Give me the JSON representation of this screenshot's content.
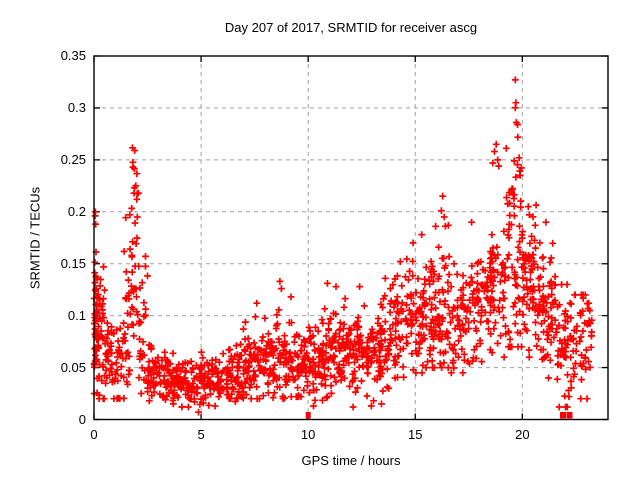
{
  "figure": {
    "background": "#ffffff",
    "border_color": "#000000",
    "text_color": "#000000"
  },
  "chart_data": {
    "type": "scatter",
    "title": "Day 207 of 2017, SRMTID for receiver ascg",
    "xlabel": "GPS time / hours",
    "ylabel": "SRMTID / TECUs",
    "xlim": [
      0,
      24
    ],
    "ylim": [
      0,
      0.35
    ],
    "xticks": {
      "values": [
        0,
        5,
        10,
        15,
        20
      ],
      "labels": [
        "0",
        "5",
        "10",
        "15",
        "20"
      ]
    },
    "yticks": {
      "values": [
        0,
        0.05,
        0.1,
        0.15,
        0.2,
        0.25,
        0.3,
        0.35
      ],
      "labels": [
        "0",
        "0.05",
        "0.1",
        "0.15",
        "0.2",
        "0.25",
        "0.3",
        "0.35"
      ]
    },
    "grid": {
      "show": true,
      "color": "#a0a0a0",
      "dash": "4 4"
    },
    "marker": {
      "shape": "plus",
      "color": "#ff0000",
      "size": 6.8,
      "stroke": 1.7
    },
    "legend": null,
    "series": [
      {
        "name": "SRMTID",
        "seed": 20717,
        "density_bins": [
          [
            0.0,
            0.15,
            45,
            0.1,
            0.045,
            0.025,
            0.2
          ],
          [
            0.15,
            0.5,
            40,
            0.08,
            0.035,
            0.02,
            0.185
          ],
          [
            0.5,
            0.9,
            30,
            0.06,
            0.022,
            0.02,
            0.13
          ],
          [
            0.9,
            1.4,
            30,
            0.055,
            0.02,
            0.02,
            0.11
          ],
          [
            1.4,
            1.75,
            28,
            0.1,
            0.05,
            0.03,
            0.21
          ],
          [
            1.75,
            2.1,
            30,
            0.16,
            0.055,
            0.04,
            0.262
          ],
          [
            2.1,
            2.5,
            26,
            0.08,
            0.035,
            0.025,
            0.16
          ],
          [
            2.5,
            3.2,
            45,
            0.048,
            0.018,
            0.018,
            0.1
          ],
          [
            3.2,
            4.0,
            60,
            0.038,
            0.012,
            0.015,
            0.075
          ],
          [
            4.0,
            5.0,
            70,
            0.036,
            0.012,
            0.012,
            0.1
          ],
          [
            5.0,
            6.0,
            70,
            0.038,
            0.013,
            0.008,
            0.08
          ],
          [
            6.0,
            7.0,
            70,
            0.045,
            0.015,
            0.015,
            0.105
          ],
          [
            7.0,
            8.0,
            70,
            0.05,
            0.017,
            0.02,
            0.112
          ],
          [
            8.0,
            9.0,
            75,
            0.055,
            0.02,
            0.02,
            0.135
          ],
          [
            9.0,
            10.0,
            70,
            0.055,
            0.018,
            0.022,
            0.118
          ],
          [
            10.0,
            11.0,
            75,
            0.06,
            0.02,
            0.01,
            0.128
          ],
          [
            11.0,
            12.0,
            75,
            0.065,
            0.02,
            0.02,
            0.13
          ],
          [
            12.0,
            13.0,
            75,
            0.065,
            0.022,
            0.012,
            0.13
          ],
          [
            13.0,
            13.8,
            60,
            0.07,
            0.022,
            0.015,
            0.135
          ],
          [
            13.8,
            14.6,
            55,
            0.085,
            0.025,
            0.04,
            0.155
          ],
          [
            14.6,
            15.4,
            60,
            0.1,
            0.028,
            0.045,
            0.175
          ],
          [
            15.4,
            16.1,
            55,
            0.105,
            0.03,
            0.05,
            0.185
          ],
          [
            16.1,
            16.6,
            40,
            0.115,
            0.04,
            0.05,
            0.215
          ],
          [
            16.6,
            17.5,
            60,
            0.1,
            0.028,
            0.045,
            0.175
          ],
          [
            17.5,
            18.4,
            60,
            0.11,
            0.03,
            0.05,
            0.19
          ],
          [
            18.4,
            19.2,
            60,
            0.125,
            0.035,
            0.06,
            0.255
          ],
          [
            19.2,
            20.0,
            65,
            0.16,
            0.055,
            0.07,
            0.33
          ],
          [
            20.0,
            20.8,
            70,
            0.13,
            0.032,
            0.06,
            0.21
          ],
          [
            20.8,
            21.6,
            60,
            0.11,
            0.03,
            0.04,
            0.17
          ],
          [
            21.6,
            22.3,
            50,
            0.07,
            0.03,
            0.012,
            0.13
          ],
          [
            22.3,
            23.3,
            55,
            0.07,
            0.025,
            0.02,
            0.12
          ]
        ],
        "peak_points": [
          [
            0.05,
            0.196
          ],
          [
            0.08,
            0.188
          ],
          [
            1.82,
            0.243
          ],
          [
            1.9,
            0.259
          ],
          [
            1.95,
            0.225
          ],
          [
            1.87,
            0.218
          ],
          [
            2.0,
            0.212
          ],
          [
            2.02,
            0.195
          ],
          [
            4.88,
            0.007
          ],
          [
            7.6,
            0.112
          ],
          [
            8.68,
            0.133
          ],
          [
            8.75,
            0.126
          ],
          [
            9.2,
            0.118
          ],
          [
            10.25,
            0.013
          ],
          [
            10.9,
            0.131
          ],
          [
            11.3,
            0.128
          ],
          [
            12.4,
            0.128
          ],
          [
            12.95,
            0.013
          ],
          [
            13.05,
            0.018
          ],
          [
            13.6,
            0.136
          ],
          [
            14.3,
            0.152
          ],
          [
            14.9,
            0.17
          ],
          [
            15.3,
            0.178
          ],
          [
            15.95,
            0.186
          ],
          [
            16.22,
            0.201
          ],
          [
            16.28,
            0.215
          ],
          [
            16.35,
            0.195
          ],
          [
            18.62,
            0.247
          ],
          [
            18.7,
            0.258
          ],
          [
            18.78,
            0.265
          ],
          [
            18.85,
            0.25
          ],
          [
            18.9,
            0.244
          ],
          [
            19.55,
            0.222
          ],
          [
            19.62,
            0.249
          ],
          [
            19.67,
            0.327
          ],
          [
            19.7,
            0.305
          ],
          [
            19.72,
            0.286
          ],
          [
            19.78,
            0.284
          ],
          [
            19.85,
            0.252
          ],
          [
            19.9,
            0.235
          ],
          [
            20.28,
            0.205
          ],
          [
            20.33,
            0.197
          ],
          [
            20.6,
            0.187
          ],
          [
            21.1,
            0.19
          ],
          [
            22.1,
            0.012
          ],
          [
            22.18,
            0.022
          ],
          [
            23.1,
            0.112
          ],
          [
            23.15,
            0.105
          ]
        ],
        "zero_clusters": [
          {
            "x": 10.0,
            "w": 5
          },
          {
            "x": 21.9,
            "w": 6
          },
          {
            "x": 22.2,
            "w": 6
          }
        ]
      }
    ]
  }
}
